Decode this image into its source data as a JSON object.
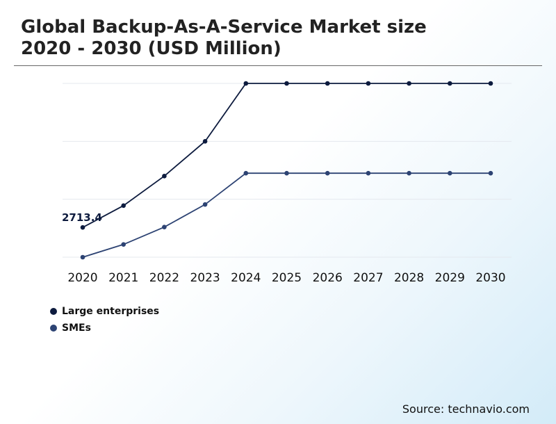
{
  "title": "Global Backup-As-A-Service Market size\n2020 - 2030 (USD Million)",
  "source": "Source: technavio.com",
  "chart_data": {
    "type": "line",
    "title": "Global Backup-As-A-Service Market size 2020 - 2030 (USD Million)",
    "categories": [
      "2020",
      "2021",
      "2022",
      "2023",
      "2024",
      "2025",
      "2026",
      "2027",
      "2028",
      "2029",
      "2030"
    ],
    "ylim": [
      2200,
      5200
    ],
    "grid": true,
    "legend_position": "bottom-left",
    "annotations": [
      {
        "series": 0,
        "index": 0,
        "text": "2713.4"
      }
    ],
    "series": [
      {
        "name": "Large enterprises",
        "color": "#0d1b3e",
        "values": [
          2713.4,
          3090,
          3600,
          4200,
          5200,
          5200,
          5200,
          5200,
          5200,
          5200,
          5200
        ]
      },
      {
        "name": "SMEs",
        "color": "#2d4373",
        "values": [
          2200,
          2420,
          2720,
          3110,
          3650,
          3650,
          3650,
          3650,
          3650,
          3650,
          3650
        ]
      }
    ]
  }
}
